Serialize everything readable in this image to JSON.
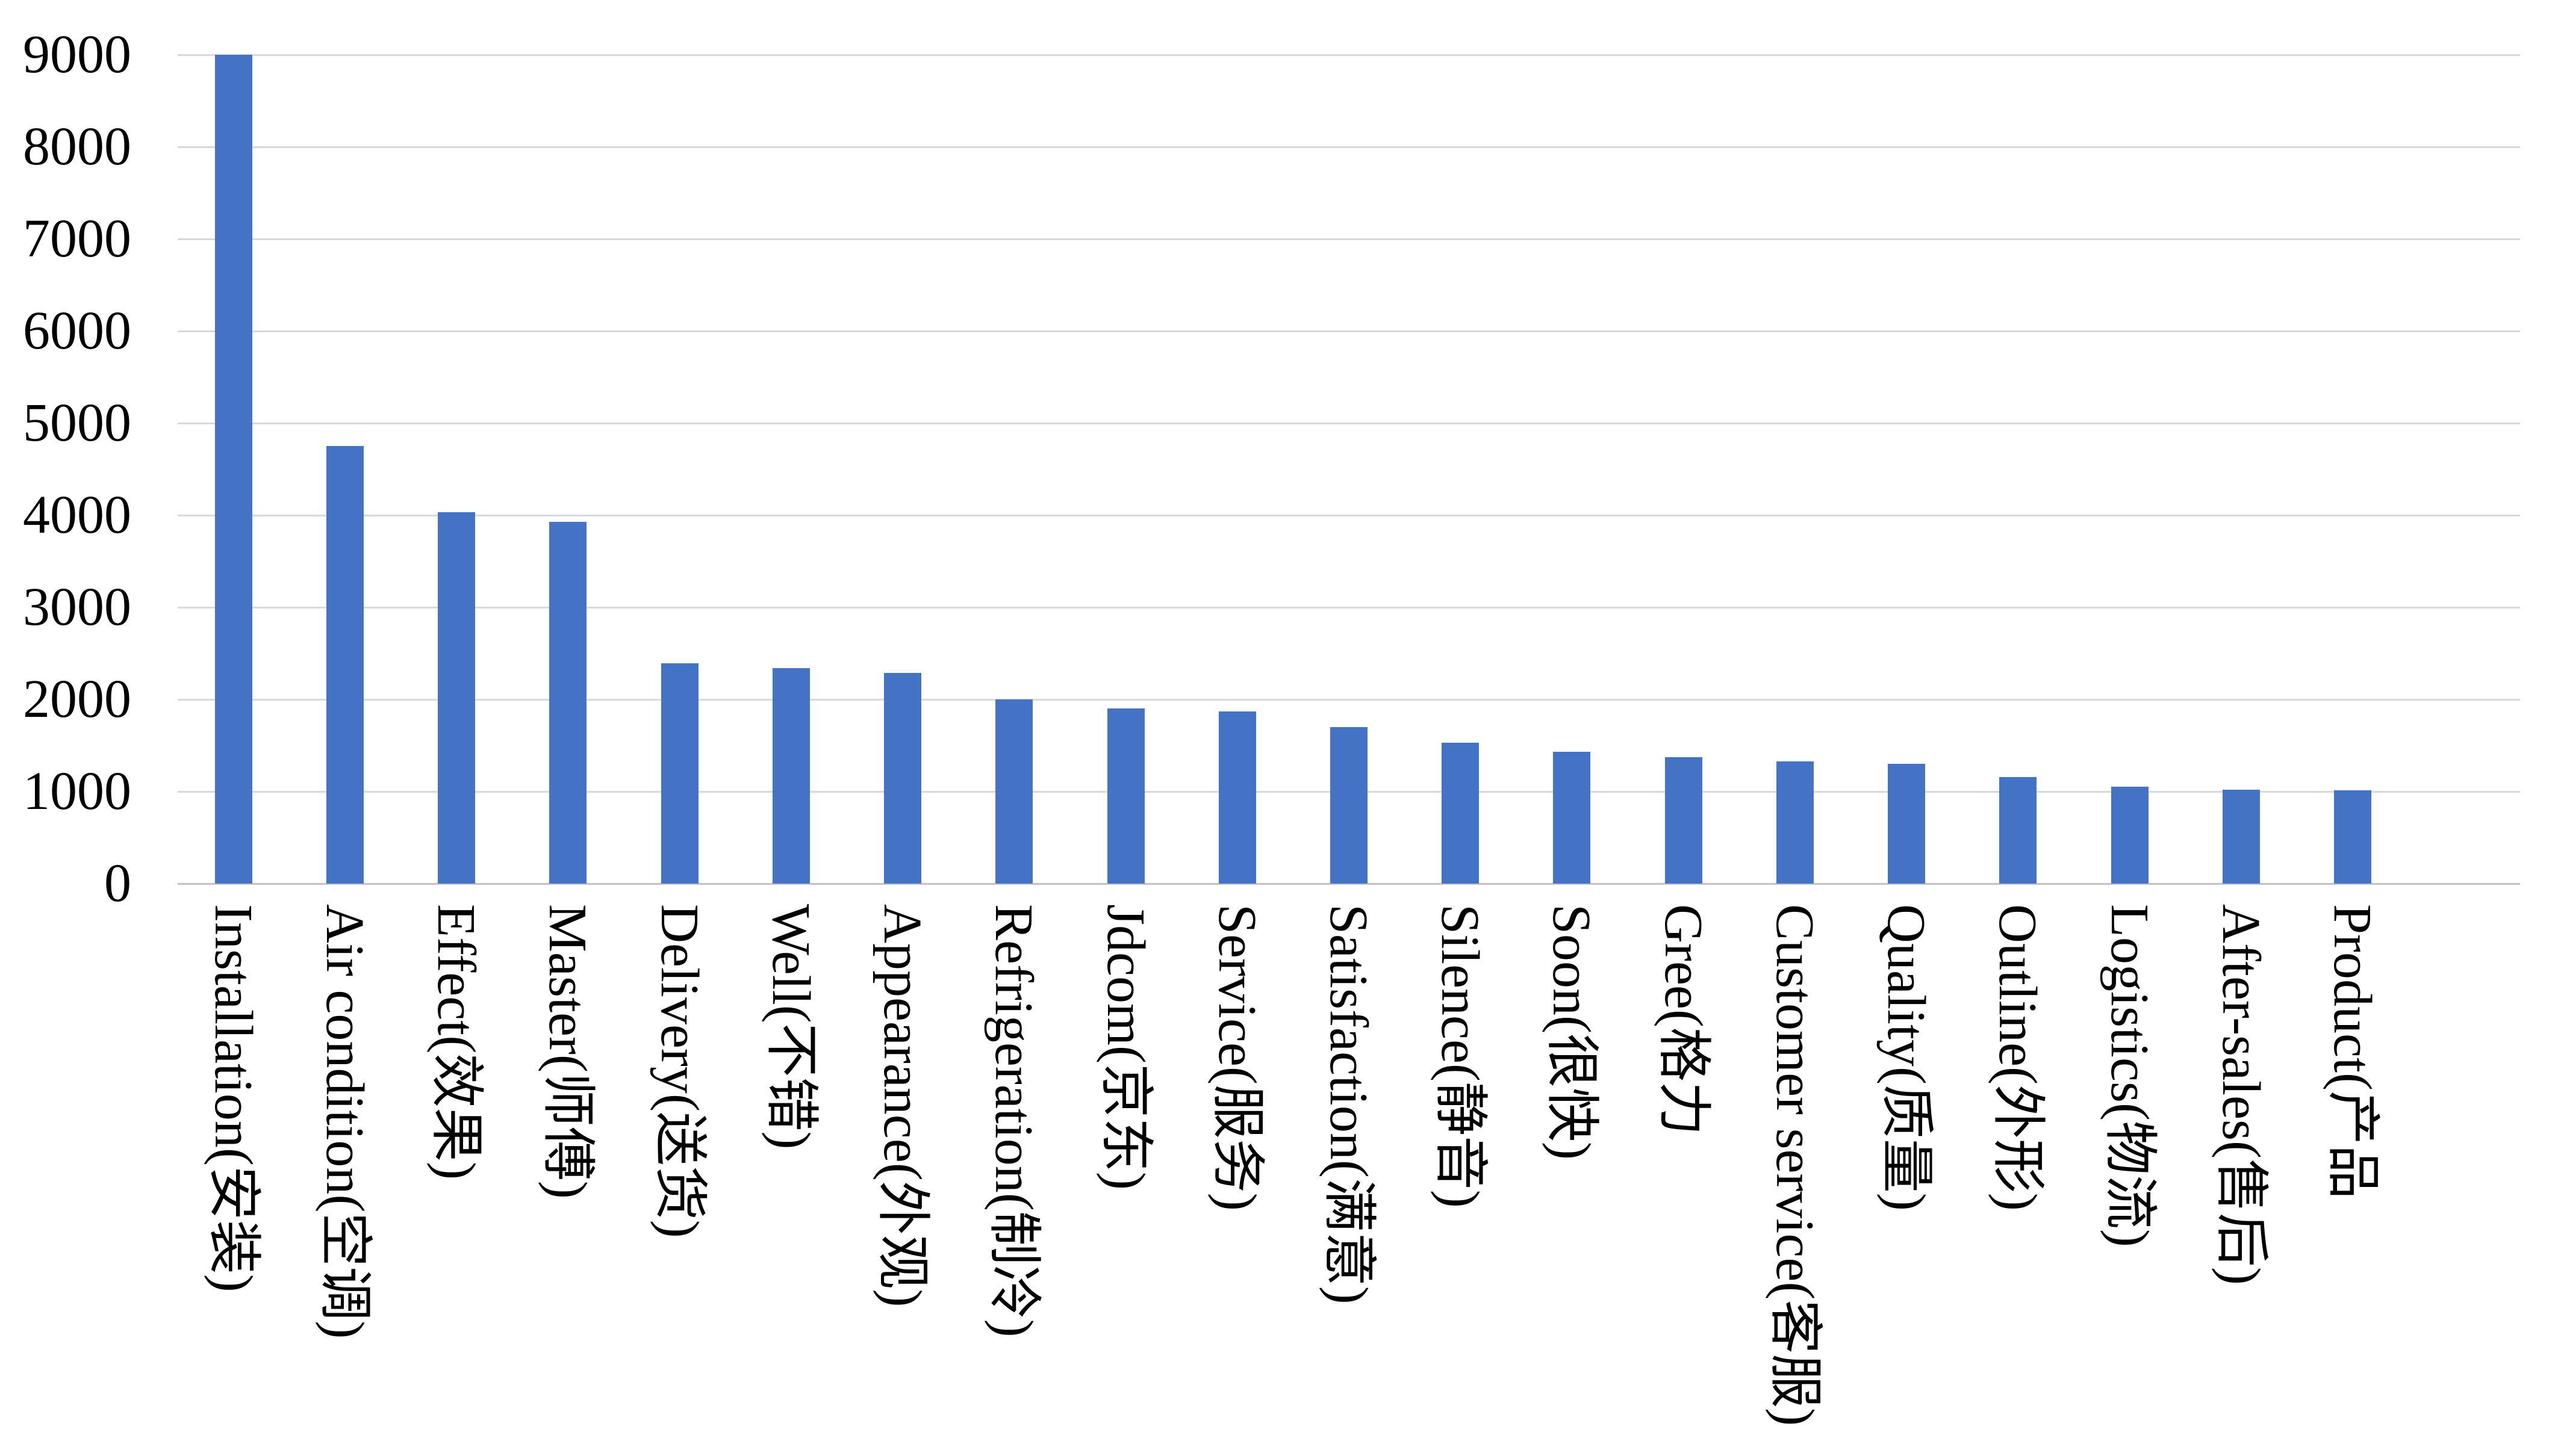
{
  "page": {
    "background": "#FFFFFF"
  },
  "chart_data": {
    "type": "bar",
    "title": "",
    "xlabel": "",
    "ylabel": "",
    "categories": [
      "Installation(安装)",
      "Air condition(空调)",
      "Effect(效果)",
      "Master(师傅)",
      "Delivery(送货)",
      "Well(不错)",
      "Appearance(外观)",
      "Refrigeration(制冷)",
      "Jdcom(京东)",
      "Service(服务)",
      "Satisfaction(满意)",
      "Silence(静音)",
      "Soon(很快)",
      "Gree(格力",
      "Customer service(客服)",
      "Quality(质量)",
      "Outline(外形)",
      "Logistics(物流)",
      "After-sales(售后)",
      "Product(产品"
    ],
    "values": [
      9000,
      4750,
      4030,
      3930,
      2390,
      2340,
      2290,
      2000,
      1900,
      1870,
      1700,
      1530,
      1430,
      1370,
      1330,
      1300,
      1160,
      1050,
      1020,
      1015
    ],
    "ylim": [
      0,
      9000
    ],
    "ytick_interval": 1000,
    "ytick_labels": [
      "0",
      "1000",
      "2000",
      "3000",
      "4000",
      "5000",
      "6000",
      "7000",
      "8000",
      "9000"
    ],
    "grid": "horizontal",
    "legend_position": "none",
    "bar_color": "#4472C4",
    "gridline_color": "#D9D9D9",
    "axis_line_color": "#C3C3C3",
    "text_color": "#000000",
    "category_label_rotation_deg": 90
  }
}
